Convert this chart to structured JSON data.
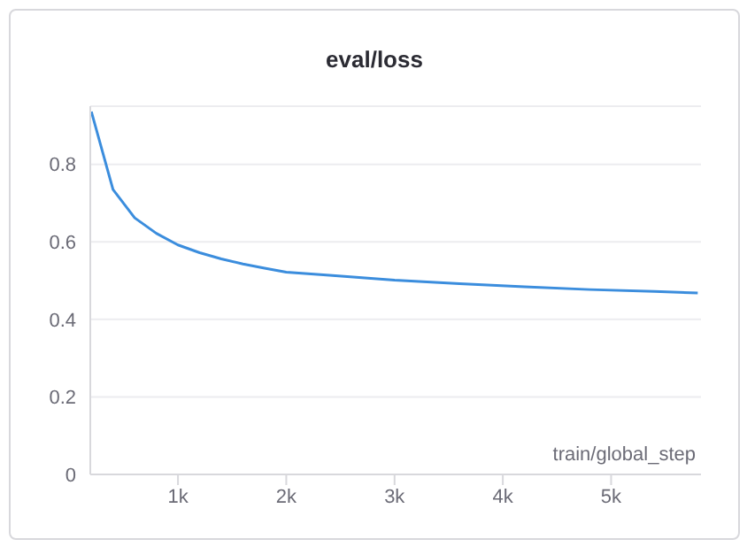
{
  "chart_data": {
    "type": "line",
    "title": "eval/loss",
    "xlabel": "train/global_step",
    "x": [
      200,
      400,
      600,
      800,
      1000,
      1200,
      1400,
      1600,
      1800,
      2000,
      2400,
      3000,
      3600,
      4200,
      4800,
      5400,
      5800
    ],
    "series": [
      {
        "color": "#3b8ddd",
        "values": [
          0.936,
          0.735,
          0.662,
          0.622,
          0.592,
          0.572,
          0.556,
          0.543,
          0.532,
          0.522,
          0.514,
          0.501,
          0.492,
          0.484,
          0.477,
          0.472,
          0.468
        ]
      }
    ],
    "xlim": [
      190,
      5830
    ],
    "xticks": [
      {
        "value": 1000,
        "label": "1k"
      },
      {
        "value": 2000,
        "label": "2k"
      },
      {
        "value": 3000,
        "label": "3k"
      },
      {
        "value": 4000,
        "label": "4k"
      },
      {
        "value": 5000,
        "label": "5k"
      }
    ],
    "ylim": [
      0,
      0.95
    ],
    "yticks": [
      0,
      0.2,
      0.4,
      0.6,
      0.8
    ],
    "grid": "y",
    "marker": "none",
    "line_style": "solid",
    "legend": false
  }
}
